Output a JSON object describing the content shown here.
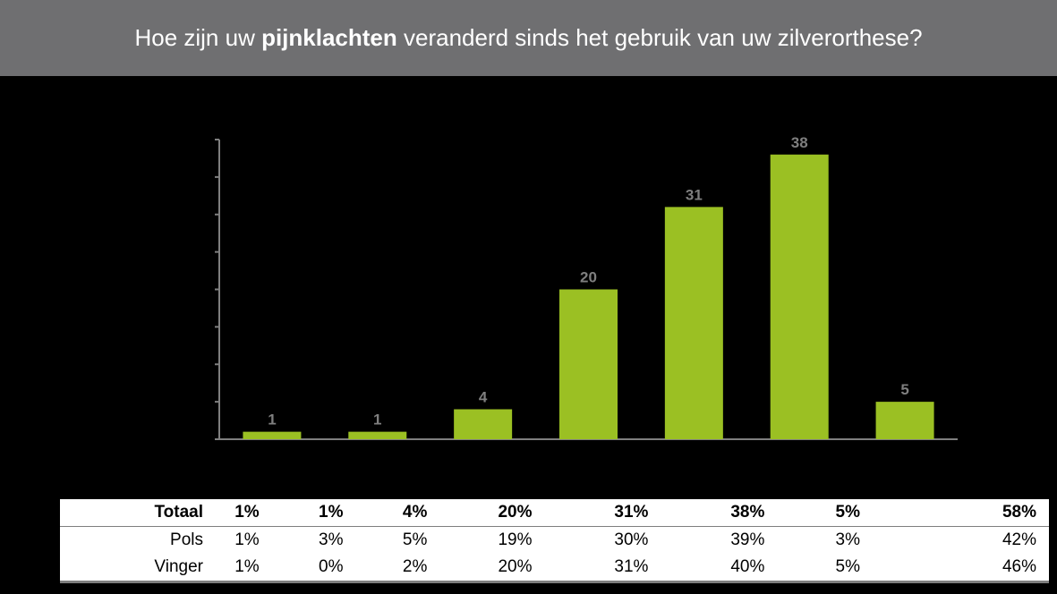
{
  "title": {
    "before": "Hoe zijn uw ",
    "bold": "pijnklachten",
    "after": " veranderd sinds het gebruik van uw zilverorthese?"
  },
  "colors": {
    "bar": "#9bc023",
    "axis": "#7f7f7f",
    "data_label": "#7f7f7f",
    "title_bar": "#6f6f71"
  },
  "chart_data": {
    "type": "bar",
    "categories": [
      "",
      "",
      "",
      "",
      "",
      "",
      ""
    ],
    "values": [
      1,
      1,
      4,
      20,
      31,
      38,
      5
    ],
    "data_labels": [
      "1",
      "1",
      "4",
      "20",
      "31",
      "38",
      "5"
    ],
    "ylim": [
      0,
      40
    ],
    "y_ticks": 8,
    "grid": false,
    "legend": "none"
  },
  "table": {
    "rows": [
      {
        "label": "Totaal",
        "cells": [
          "1%",
          "1%",
          "4%",
          "20%",
          "31%",
          "38%",
          "5%",
          "58%"
        ]
      },
      {
        "label": "Pols",
        "cells": [
          "1%",
          "3%",
          "5%",
          "19%",
          "30%",
          "39%",
          "3%",
          "42%"
        ]
      },
      {
        "label": "Vinger",
        "cells": [
          "1%",
          "0%",
          "2%",
          "20%",
          "31%",
          "40%",
          "5%",
          "46%"
        ]
      }
    ]
  }
}
